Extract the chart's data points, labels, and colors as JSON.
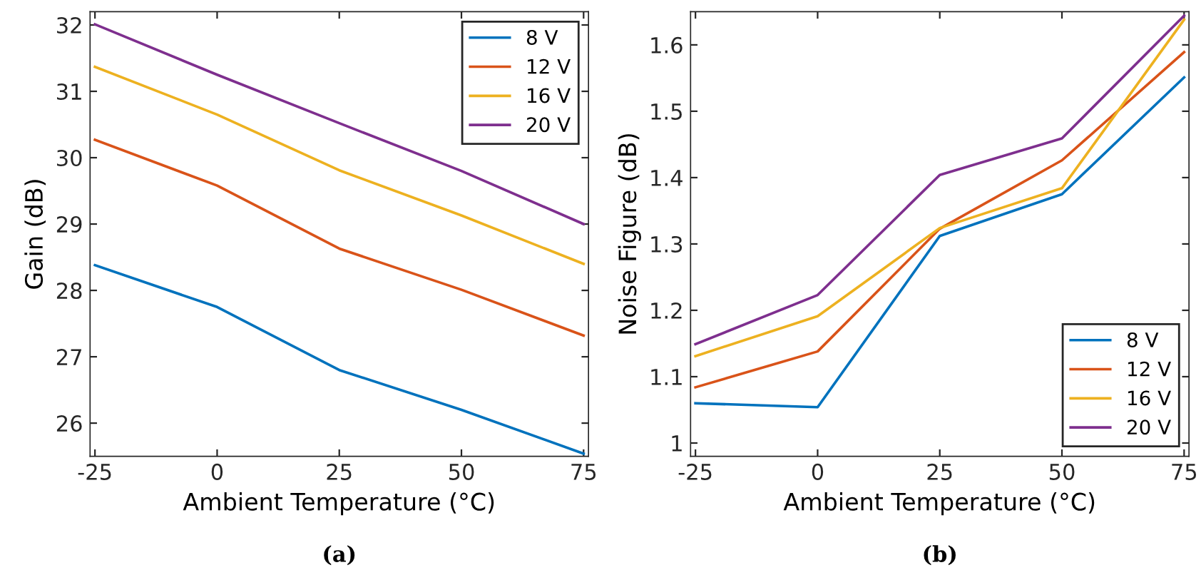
{
  "chart_data": [
    {
      "type": "line",
      "xlabel": "Ambient Temperature (°C)",
      "ylabel": "Gain (dB)",
      "annotations": [
        "(a)"
      ],
      "x": [
        -25,
        0,
        25,
        50,
        75
      ],
      "xlim": [
        -26,
        76
      ],
      "xticks": [
        -25,
        0,
        25,
        50,
        75
      ],
      "ylim": [
        25.5,
        32.2
      ],
      "yticks": [
        26,
        27,
        28,
        29,
        30,
        31,
        32
      ],
      "grid": false,
      "legend": "top right",
      "marker": "none",
      "line_style": "solid",
      "series": [
        {
          "name": "8 V",
          "color": "#0072bd",
          "values": [
            28.38,
            27.75,
            26.8,
            26.2,
            25.54
          ]
        },
        {
          "name": "12 V",
          "color": "#d95319",
          "values": [
            30.27,
            29.58,
            28.63,
            28.01,
            27.32
          ]
        },
        {
          "name": "16 V",
          "color": "#edb120",
          "values": [
            31.37,
            30.65,
            29.81,
            29.13,
            28.4
          ]
        },
        {
          "name": "20 V",
          "color": "#7e2f8e",
          "values": [
            32.01,
            31.25,
            30.52,
            29.8,
            29.0
          ]
        }
      ]
    },
    {
      "type": "line",
      "xlabel": "Ambient Temperature (°C)",
      "ylabel": "Noise Figure (dB)",
      "annotations": [
        "(b)"
      ],
      "x": [
        -25,
        0,
        25,
        50,
        75
      ],
      "xlim": [
        -26,
        76
      ],
      "xticks": [
        -25,
        0,
        25,
        50,
        75
      ],
      "ylim": [
        0.98,
        1.65
      ],
      "yticks": [
        1,
        1.1,
        1.2,
        1.3,
        1.4,
        1.5,
        1.6
      ],
      "grid": false,
      "legend": "bottom right",
      "marker": "none",
      "line_style": "solid",
      "series": [
        {
          "name": "8 V",
          "color": "#0072bd",
          "values": [
            1.06,
            1.054,
            1.312,
            1.375,
            1.551
          ]
        },
        {
          "name": "12 V",
          "color": "#d95319",
          "values": [
            1.084,
            1.138,
            1.323,
            1.426,
            1.589
          ]
        },
        {
          "name": "16 V",
          "color": "#edb120",
          "values": [
            1.131,
            1.191,
            1.324,
            1.384,
            1.638
          ]
        },
        {
          "name": "20 V",
          "color": "#7e2f8e",
          "values": [
            1.149,
            1.223,
            1.404,
            1.459,
            1.644
          ]
        }
      ]
    }
  ]
}
